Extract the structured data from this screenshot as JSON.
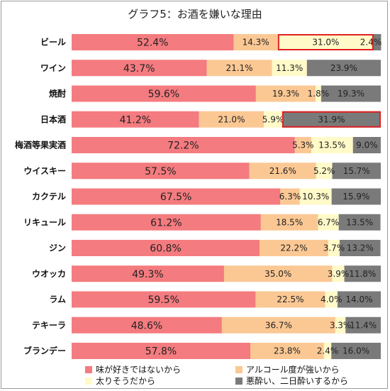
{
  "chart_data": {
    "type": "bar",
    "orientation": "horizontal",
    "stacked": true,
    "title": "グラフ5：お酒を嫌いな理由",
    "xlim": [
      0,
      100
    ],
    "grid": false,
    "legend_position": "bottom",
    "categories": [
      "ビール",
      "ワイン",
      "焼酎",
      "日本酒",
      "梅酒等果実酒",
      "ウイスキー",
      "カクテル",
      "リキュール",
      "ジン",
      "ウオッカ",
      "ラム",
      "テキーラ",
      "ブランデー"
    ],
    "series": [
      {
        "name": "味が好きではないから",
        "color": "#f47b7f",
        "values": [
          52.4,
          43.7,
          59.6,
          41.2,
          72.2,
          57.5,
          67.5,
          61.2,
          60.8,
          49.3,
          59.5,
          48.6,
          57.8
        ],
        "labels": [
          "52.4%",
          "43.7%",
          "59.6%",
          "41.2%",
          "72.2%",
          "57.5%",
          "67.5%",
          "61.2%",
          "60.8%",
          "49.3%",
          "59.5%",
          "48.6%",
          "57.8%"
        ]
      },
      {
        "name": "アルコール度が強いから",
        "color": "#fbc894",
        "values": [
          14.3,
          21.1,
          19.3,
          21.0,
          5.3,
          21.6,
          6.3,
          18.5,
          22.2,
          35.0,
          22.5,
          36.7,
          23.8
        ],
        "labels": [
          "14.3%",
          "21.1%",
          "19.3%",
          "21.0%",
          "5.3%",
          "21.6%",
          "6.3%",
          "18.5%",
          "22.2%",
          "35.0%",
          "22.5%",
          "36.7%",
          "23.8%"
        ]
      },
      {
        "name": "太りそうだから",
        "color": "#fffac8",
        "values": [
          31.0,
          11.3,
          1.8,
          5.9,
          13.5,
          5.2,
          10.3,
          6.7,
          3.7,
          3.9,
          4.0,
          3.3,
          2.4
        ],
        "labels": [
          "31.0%",
          "11.3%",
          "1.8%",
          "5.9%",
          "13.5%",
          "5.2%",
          "10.3%",
          "6.7%",
          "3.7%",
          "3.9%",
          "4.0%",
          "3.3%",
          "2.4%"
        ]
      },
      {
        "name": "悪酔い、二日酔いするから",
        "color": "#7a7a7a",
        "values": [
          2.4,
          23.9,
          19.3,
          31.9,
          9.0,
          15.7,
          15.9,
          13.5,
          13.2,
          11.8,
          14.0,
          11.4,
          16.0
        ],
        "labels": [
          "2.4%",
          "23.9%",
          "19.3%",
          "31.9%",
          "9.0%",
          "15.7%",
          "15.9%",
          "13.5%",
          "13.2%",
          "11.8%",
          "14.0%",
          "11.4%",
          "16.0%"
        ]
      }
    ],
    "highlights": [
      {
        "category_index": 0,
        "series_index": 2,
        "color": "#e02020"
      },
      {
        "category_index": 3,
        "series_index": 3,
        "color": "#e02020"
      }
    ]
  }
}
